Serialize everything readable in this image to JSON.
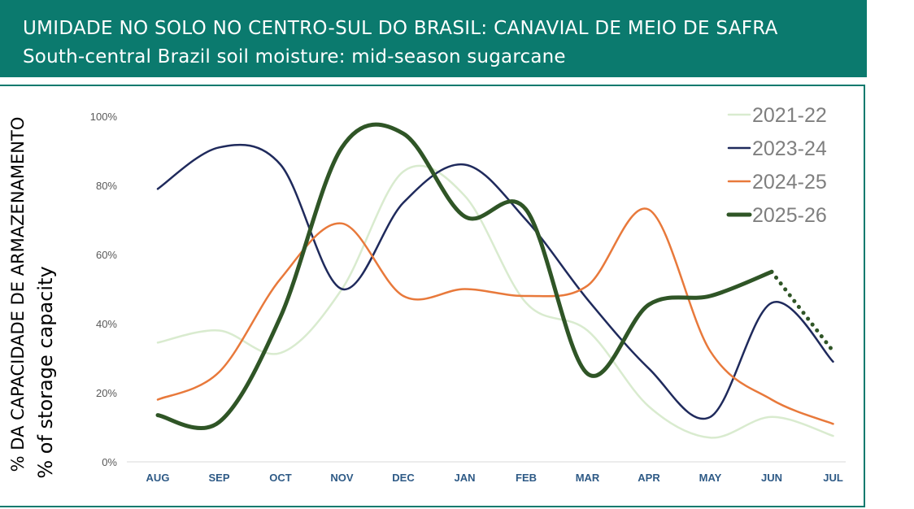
{
  "header": {
    "title_pt": "UMIDADE NO SOLO NO CENTRO-SUL DO BRASIL: CANAVIAL DE MEIO DE SAFRA",
    "title_en": "South-central Brazil soil moisture: mid-season sugarcane",
    "background": "#0b7a6e"
  },
  "chart_data": {
    "type": "line",
    "title": "",
    "ylabel_pt": "% DA CAPACIDADE DE ARMAZENAMENTO",
    "ylabel_en": "% of storage capacity",
    "xlabel": "",
    "categories": [
      "AUG",
      "SEP",
      "OCT",
      "NOV",
      "DEC",
      "JAN",
      "FEB",
      "MAR",
      "APR",
      "MAY",
      "JUN",
      "JUL"
    ],
    "yticks": [
      "0%",
      "20%",
      "40%",
      "60%",
      "80%",
      "100%"
    ],
    "ylim": [
      0,
      100
    ],
    "grid": false,
    "legend_position": "top-right",
    "series": [
      {
        "name": "2021-22",
        "color": "#d9ebcf",
        "values": [
          34.5,
          38,
          31.5,
          50,
          84,
          77,
          46,
          38,
          16,
          7,
          13,
          7.5
        ]
      },
      {
        "name": "2023-24",
        "color": "#1f2a5c",
        "values": [
          79,
          91,
          86,
          50,
          75,
          86,
          70,
          47,
          27,
          13,
          46,
          29
        ]
      },
      {
        "name": "2024-25",
        "color": "#e8793b",
        "values": [
          18,
          26,
          53,
          69,
          48,
          50,
          48,
          51,
          73,
          32,
          18,
          11
        ]
      },
      {
        "name": "2025-26",
        "color": "#2f5526",
        "values": [
          13.5,
          11.5,
          42,
          91,
          95,
          71,
          73,
          25.5,
          45.5,
          48,
          55,
          32
        ],
        "dotted_from_index": 10
      }
    ]
  }
}
